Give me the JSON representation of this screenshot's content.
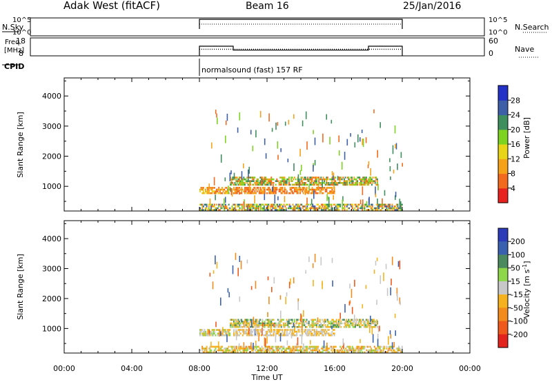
{
  "header": {
    "site": "Adak West (fitACF)",
    "beam": "Beam 16",
    "date": "25/Jan/2016"
  },
  "chart_data": [
    {
      "id": "nsky",
      "type": "line",
      "left_label": "N.Sky",
      "right_label": "N.Search",
      "left_ticks": [
        "10^5",
        "10^0"
      ],
      "right_ticks": [
        "10^5",
        "10^0"
      ],
      "series": [
        {
          "name": "N.Sky",
          "x": [
            8,
            8,
            20,
            20
          ],
          "y_level": [
            0,
            0.35,
            0.35,
            0
          ]
        },
        {
          "name": "N.Search",
          "x": [
            8,
            20
          ],
          "y_level": [
            0.25,
            0.25
          ]
        }
      ]
    },
    {
      "id": "freq",
      "type": "line",
      "left_label_lines": [
        "Freq.",
        "[MHz]"
      ],
      "right_label": "Nave",
      "left_ticks": [
        "18",
        "8"
      ],
      "right_ticks": [
        "60",
        "0"
      ],
      "ylim_left": [
        8,
        18
      ],
      "ylim_right": [
        0,
        60
      ],
      "series": [
        {
          "name": "Freq.",
          "x": [
            8,
            8,
            10,
            10,
            18,
            18,
            20,
            20
          ],
          "y": [
            8,
            13.4,
            13.4,
            11.2,
            11.2,
            13.4,
            13.4,
            8
          ]
        },
        {
          "name": "Nave",
          "x": [
            8,
            20
          ],
          "y": [
            22,
            22
          ]
        }
      ]
    },
    {
      "id": "cpid",
      "type": "other",
      "label": "CPID",
      "text": "normalsound (fast) 157 RF",
      "x": 8
    },
    {
      "id": "power",
      "type": "heatmap",
      "xlim": [
        0,
        24
      ],
      "ylim": [
        180,
        4600
      ],
      "yticks": [
        1000,
        2000,
        3000,
        4000
      ],
      "ylabel": "Slant Range [km]",
      "colorbar": {
        "label": "Power [dB]",
        "ticks": [
          "28",
          "24",
          "20",
          "16",
          "12",
          "8",
          "4"
        ],
        "colors": [
          "#e8231f",
          "#f26a1e",
          "#f5a21a",
          "#e8d517",
          "#7ed321",
          "#3f8e5e",
          "#3d5fa8",
          "#2431c6"
        ]
      },
      "bands": [
        {
          "x": [
            8.0,
            9.8
          ],
          "y": [
            760,
            980
          ],
          "levels": [
            1,
            2,
            3
          ]
        },
        {
          "x": [
            9.8,
            18.5
          ],
          "y": [
            1040,
            1320
          ],
          "levels": [
            1,
            2,
            4,
            5
          ]
        },
        {
          "x": [
            10.0,
            16.0
          ],
          "y": [
            780,
            980
          ],
          "levels": [
            1,
            2
          ]
        },
        {
          "x": [
            8.0,
            20.0
          ],
          "y": [
            200,
            420
          ],
          "levels": [
            1,
            2,
            3,
            4,
            5,
            6
          ]
        }
      ],
      "scatter": {
        "x": [
          8.5,
          20.0
        ],
        "y": [
          500,
          3600
        ],
        "levels": [
          1,
          2,
          4,
          5,
          6
        ]
      }
    },
    {
      "id": "velocity",
      "type": "heatmap",
      "xlim": [
        0,
        24
      ],
      "ylim": [
        180,
        4600
      ],
      "yticks": [
        1000,
        2000,
        3000,
        4000
      ],
      "ylabel": "Slant Range [km]",
      "xticks": [
        "00:00",
        "04:00",
        "08:00",
        "12:00",
        "16:00",
        "20:00",
        "00:00"
      ],
      "xlabel": "Time UT",
      "colorbar": {
        "label_main": "Velocity [m s",
        "label_sup": "-1",
        "label_end": "]",
        "ticks": [
          "200",
          "100",
          "50",
          "15",
          "-15",
          "-50",
          "-100",
          "-200"
        ],
        "colors": [
          "#2c3cb8",
          "#3a61b0",
          "#4a8a5e",
          "#8ed64a",
          "#c8c8c8",
          "#f6b21e",
          "#f28b1c",
          "#ef5a1c",
          "#e3231d"
        ]
      },
      "bands": [
        {
          "x": [
            8.0,
            9.8
          ],
          "y": [
            760,
            980
          ],
          "levels": [
            3,
            4,
            5
          ]
        },
        {
          "x": [
            9.8,
            18.5
          ],
          "y": [
            1040,
            1320
          ],
          "levels": [
            2,
            3,
            4,
            5,
            5
          ]
        },
        {
          "x": [
            10.0,
            16.0
          ],
          "y": [
            780,
            980
          ],
          "levels": [
            4,
            5
          ]
        },
        {
          "x": [
            8.0,
            20.0
          ],
          "y": [
            200,
            420
          ],
          "levels": [
            3,
            4,
            5,
            5,
            6
          ]
        }
      ],
      "scatter": {
        "x": [
          8.5,
          20.0
        ],
        "y": [
          500,
          3600
        ],
        "levels": [
          1,
          4,
          5,
          6,
          7
        ]
      }
    }
  ]
}
